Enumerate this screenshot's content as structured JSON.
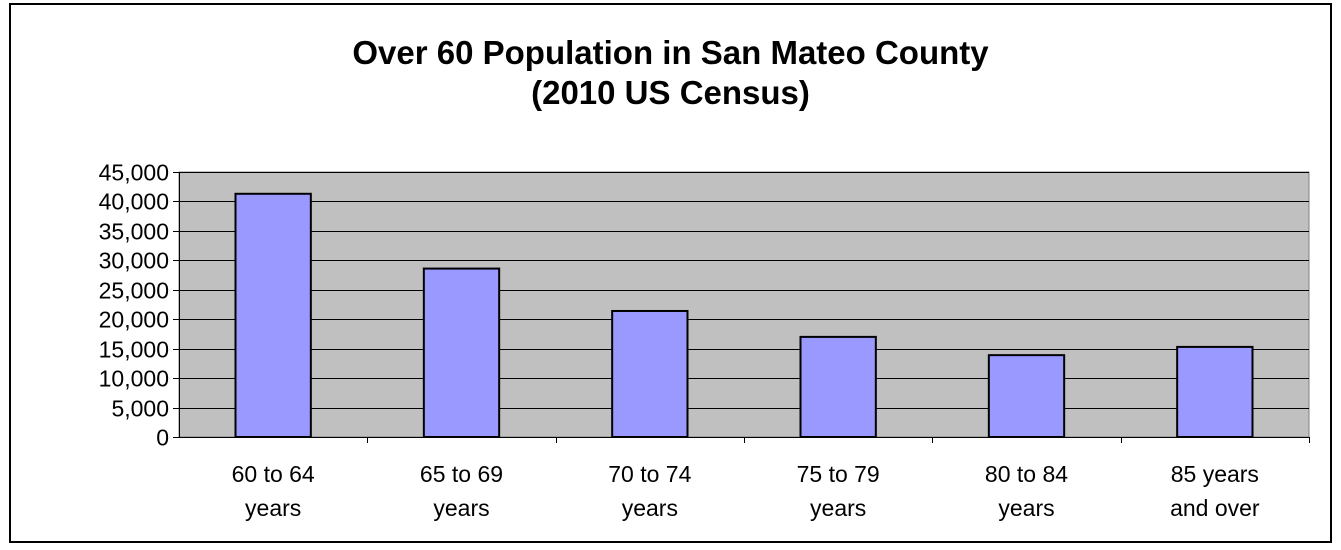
{
  "chart_data": {
    "type": "bar",
    "title": [
      "Over 60 Population in San Mateo County",
      "(2010 US Census)"
    ],
    "categories": [
      [
        "60 to 64",
        "years"
      ],
      [
        "65 to 69",
        "years"
      ],
      [
        "70 to 74",
        "years"
      ],
      [
        "75 to 79",
        "years"
      ],
      [
        "80 to 84",
        "years"
      ],
      [
        "85 years",
        "and over"
      ]
    ],
    "values": [
      41300,
      28600,
      21400,
      17000,
      13900,
      15300
    ],
    "ylim": [
      0,
      45000
    ],
    "yticks": [
      0,
      5000,
      10000,
      15000,
      20000,
      25000,
      30000,
      35000,
      40000,
      45000
    ],
    "ytick_labels": [
      "0",
      "5,000",
      "10,000",
      "15,000",
      "20,000",
      "25,000",
      "30,000",
      "35,000",
      "40,000",
      "45,000"
    ],
    "xlabel": "",
    "ylabel": "",
    "grid": true,
    "legend": "none",
    "colors": {
      "bar_fill": "#9999ff",
      "bar_stroke": "#000000",
      "plot_background": "#c0c0c0",
      "gridline": "#000000"
    }
  }
}
